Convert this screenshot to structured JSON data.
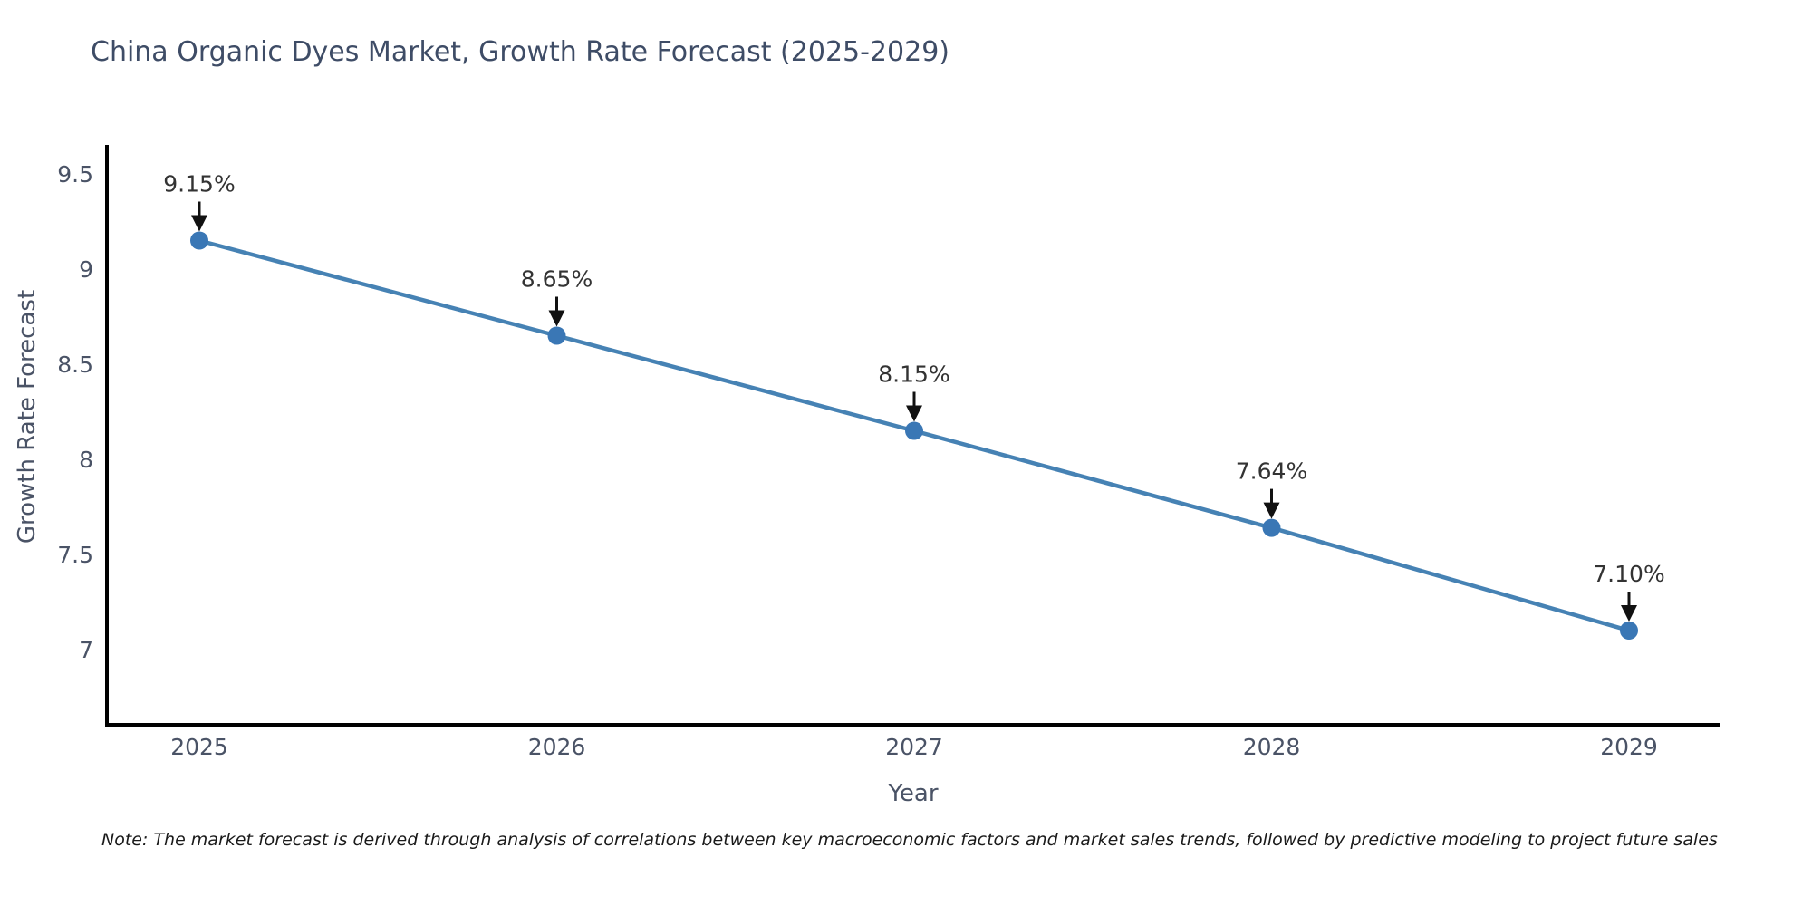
{
  "chart_data": {
    "type": "line",
    "title": "China Organic Dyes Market, Growth Rate Forecast (2025-2029)",
    "xlabel": "Year",
    "ylabel": "Growth Rate Forecast",
    "x": [
      2025,
      2026,
      2027,
      2028,
      2029
    ],
    "series": [
      {
        "name": "Growth Rate Forecast",
        "values": [
          9.15,
          8.65,
          8.15,
          7.64,
          7.1
        ]
      }
    ],
    "point_labels": [
      "9.15%",
      "8.65%",
      "8.15%",
      "7.64%",
      "7.10%"
    ],
    "yticks": [
      7,
      7.5,
      8,
      8.5,
      9,
      9.5
    ],
    "ylim": [
      6.6,
      9.65
    ],
    "grid": false,
    "legend": "none",
    "annotation_style": "value label with downward black arrow onto each marker",
    "colors": {
      "line": "#4682B4",
      "marker": "#3A77B5",
      "arrow": "#111111",
      "axis": "#000000",
      "title": "#3E4C66",
      "tick": "#4A5366",
      "annotation": "#333333",
      "note": "#1A1A1A"
    },
    "note": "Note: The market forecast is derived through analysis of correlations between key macroeconomic factors and market sales trends, followed by predictive modeling to project future sales"
  }
}
